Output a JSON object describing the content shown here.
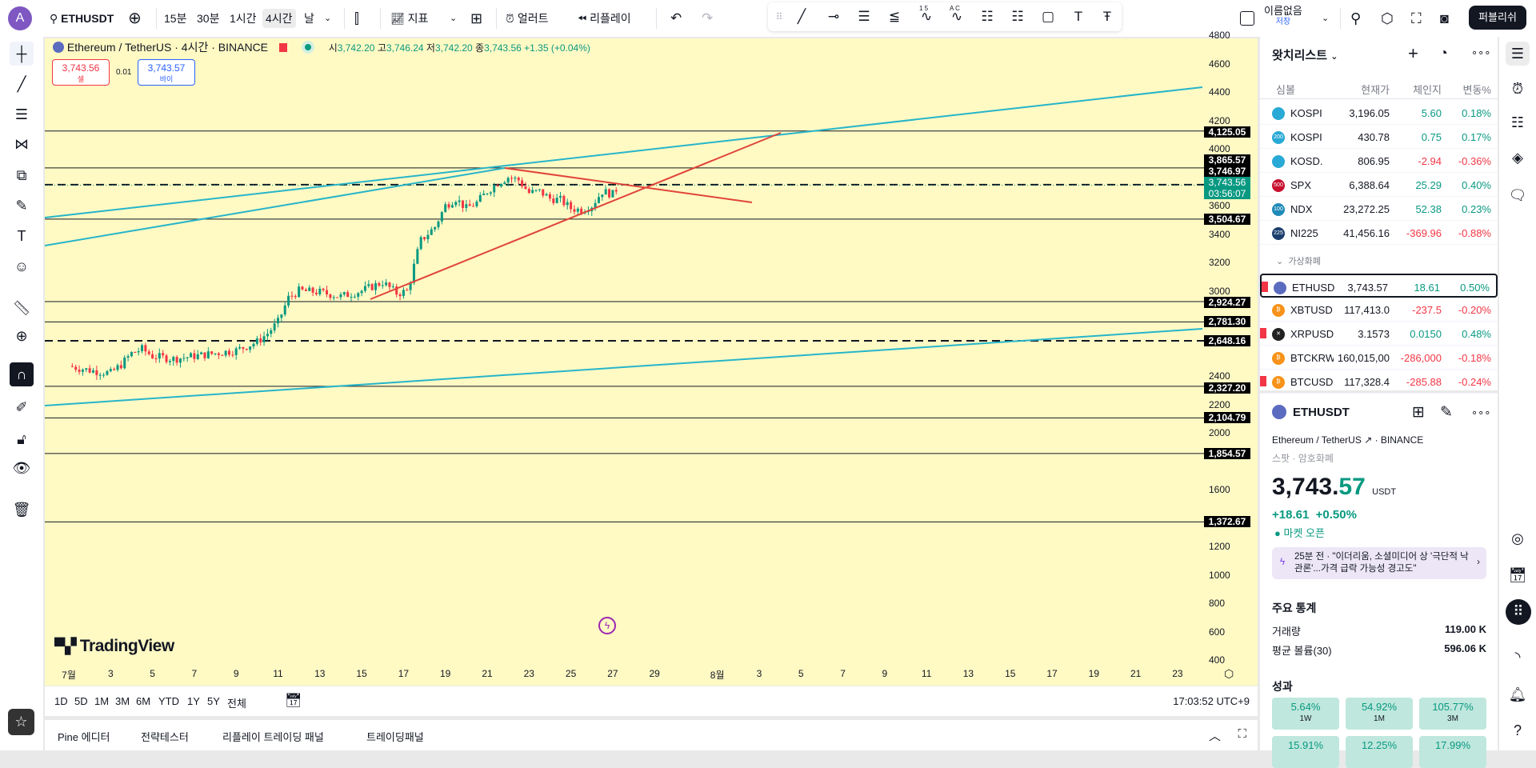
{
  "topbar": {
    "avatar": "A",
    "symbol": "ETHUSDT",
    "intervals": [
      "15분",
      "30분",
      "1시간",
      "4시간",
      "날"
    ],
    "selected_interval": "4시간",
    "indicators": "지표",
    "alert": "얼러트",
    "replay": "리플레이",
    "layout_name": "이름없음",
    "layout_sub": "저장",
    "publish": "퍼블리쉬",
    "drawing_tools": [
      "trendline-icon",
      "horizontal-ray-icon",
      "parallel-channel-icon",
      "fib-retracement-icon",
      "xabcd-pattern-icon",
      "abcd-pattern-icon",
      "long-position-icon",
      "short-position-icon",
      "rectangle-icon",
      "text-icon",
      "anchored-text-icon"
    ],
    "pattern_labels": [
      "1 5",
      "A C"
    ]
  },
  "legend": {
    "title": "Ethereum / TetherUS · 4시간 · BINANCE",
    "o_label": "시",
    "o": "3,742.20",
    "h_label": "고",
    "h": "3,746.24",
    "l_label": "저",
    "l": "3,742.20",
    "c_label": "종",
    "c": "3,743.56",
    "change": "+1.35 (+0.04%)",
    "sell_price": "3,743.56",
    "sell_label": "셀",
    "spread": "0.01",
    "buy_price": "3,743.57",
    "buy_label": "바이"
  },
  "logo": "TradingView",
  "chart_data": {
    "type": "candlestick",
    "ylim": [
      400,
      4800
    ],
    "y_ticks": [
      4800,
      4600,
      4400,
      4200,
      4000,
      3600,
      3400,
      3200,
      3000,
      2400,
      2200,
      2000,
      1600,
      1200,
      1000,
      800,
      600,
      400
    ],
    "x_ticks": [
      {
        "day": 1,
        "label": "7월"
      },
      {
        "day": 3,
        "label": "3"
      },
      {
        "day": 5,
        "label": "5"
      },
      {
        "day": 7,
        "label": "7"
      },
      {
        "day": 9,
        "label": "9"
      },
      {
        "day": 11,
        "label": "11"
      },
      {
        "day": 13,
        "label": "13"
      },
      {
        "day": 15,
        "label": "15"
      },
      {
        "day": 17,
        "label": "17"
      },
      {
        "day": 19,
        "label": "19"
      },
      {
        "day": 21,
        "label": "21"
      },
      {
        "day": 23,
        "label": "23"
      },
      {
        "day": 25,
        "label": "25"
      },
      {
        "day": 27,
        "label": "27"
      },
      {
        "day": 29,
        "label": "29"
      },
      {
        "day": 32,
        "label": "8월"
      },
      {
        "day": 34,
        "label": "3"
      },
      {
        "day": 36,
        "label": "5"
      },
      {
        "day": 38,
        "label": "7"
      },
      {
        "day": 40,
        "label": "9"
      },
      {
        "day": 42,
        "label": "11"
      },
      {
        "day": 44,
        "label": "13"
      },
      {
        "day": 46,
        "label": "15"
      },
      {
        "day": 48,
        "label": "17"
      },
      {
        "day": 50,
        "label": "19"
      },
      {
        "day": 52,
        "label": "21"
      },
      {
        "day": 54,
        "label": "23"
      }
    ],
    "price_path": [
      [
        0,
        2470
      ],
      [
        1,
        2440
      ],
      [
        2,
        2420
      ],
      [
        2.5,
        2480
      ],
      [
        3,
        2560
      ],
      [
        3.5,
        2590
      ],
      [
        4,
        2540
      ],
      [
        5,
        2520
      ],
      [
        6,
        2540
      ],
      [
        7,
        2560
      ],
      [
        8,
        2580
      ],
      [
        9,
        2640
      ],
      [
        9.5,
        2700
      ],
      [
        10,
        2780
      ],
      [
        10.5,
        2950
      ],
      [
        11,
        3000
      ],
      [
        12,
        2990
      ],
      [
        13,
        2960
      ],
      [
        14,
        3000
      ],
      [
        15,
        3060
      ],
      [
        15.7,
        2980
      ],
      [
        16.2,
        3000
      ],
      [
        16.8,
        3350
      ],
      [
        17.5,
        3450
      ],
      [
        18,
        3600
      ],
      [
        18.5,
        3650
      ],
      [
        19,
        3580
      ],
      [
        19.5,
        3620
      ],
      [
        20,
        3700
      ],
      [
        20.5,
        3760
      ],
      [
        21,
        3800
      ],
      [
        21.5,
        3780
      ],
      [
        22,
        3690
      ],
      [
        22.5,
        3700
      ],
      [
        23,
        3650
      ],
      [
        23.5,
        3640
      ],
      [
        24,
        3580
      ],
      [
        24.5,
        3570
      ],
      [
        25,
        3600
      ],
      [
        25.5,
        3700
      ],
      [
        26,
        3680
      ],
      [
        26.3,
        3743.56
      ]
    ],
    "horizontal_levels": [
      {
        "price": 4125.05,
        "label": "4,125.05",
        "style": "solid"
      },
      {
        "price": 3865.57,
        "label": "3,865.57",
        "style": "solid"
      },
      {
        "price": 3746.97,
        "label": "3,746.97",
        "style": "dashed"
      },
      {
        "price": 3504.67,
        "label": "3,504.67",
        "style": "solid"
      },
      {
        "price": 2924.27,
        "label": "2,924.27",
        "style": "solid"
      },
      {
        "price": 2781.3,
        "label": "2,781.30",
        "style": "solid"
      },
      {
        "price": 2648.16,
        "label": "2,648.16",
        "style": "dashed"
      },
      {
        "price": 2327.2,
        "label": "2,327.20",
        "style": "solid"
      },
      {
        "price": 2104.79,
        "label": "2,104.79",
        "style": "solid"
      },
      {
        "price": 1854.57,
        "label": "1,854.57",
        "style": "solid"
      },
      {
        "price": 1372.67,
        "label": "1,372.67",
        "style": "solid"
      }
    ],
    "last_price": {
      "price": 3743.56,
      "label": "3,743.56",
      "countdown": "03:56:07"
    },
    "colors": {
      "up": "#089981",
      "down": "#f23645",
      "trend_cyan": "#26b5c9",
      "trend_red": "#e0453a",
      "bg": "#fff9c4"
    }
  },
  "bottombar": {
    "ranges": [
      "1D",
      "5D",
      "1M",
      "3M",
      "6M",
      "YTD",
      "1Y",
      "5Y",
      "전체"
    ],
    "clock": "17:03:52 UTC+9"
  },
  "bottom_panel": {
    "tabs": [
      "Pine 에디터",
      "전략테스터",
      "리플레이 트레이딩 패널",
      "트레이딩패널"
    ]
  },
  "watchlist": {
    "title": "왓치리스트",
    "columns": [
      "심볼",
      "현재가",
      "체인지",
      "변동%"
    ],
    "rows": [
      {
        "badge": "",
        "color": "#29a9d6",
        "symbol": "KOSPI",
        "last": "3,196.05",
        "chg": "5.60",
        "pct": "0.18%",
        "dir": "pos"
      },
      {
        "badge": "200",
        "color": "#29a9d6",
        "symbol": "KOSPI",
        "last": "430.78",
        "chg": "0.75",
        "pct": "0.17%",
        "dir": "pos"
      },
      {
        "badge": "",
        "color": "#29a9d6",
        "symbol": "KOSD.",
        "last": "806.95",
        "chg": "-2.94",
        "pct": "-0.36%",
        "dir": "neg"
      },
      {
        "badge": "500",
        "color": "#c8102e",
        "symbol": "SPX",
        "last": "6,388.64",
        "chg": "25.29",
        "pct": "0.40%",
        "dir": "pos"
      },
      {
        "badge": "100",
        "color": "#1f8ab8",
        "symbol": "NDX",
        "last": "23,272.25",
        "chg": "52.38",
        "pct": "0.23%",
        "dir": "pos"
      },
      {
        "badge": "225",
        "color": "#1d3f6e",
        "symbol": "NI225",
        "last": "41,456.16",
        "chg": "-369.96",
        "pct": "-0.88%",
        "dir": "neg"
      }
    ],
    "section": "가상화폐",
    "crypto_rows": [
      {
        "badge": "",
        "color": "#5b6bc0",
        "symbol": "ETHUSD",
        "last": "3,743.57",
        "chg": "18.61",
        "pct": "0.50%",
        "dir": "pos",
        "flag": true,
        "selected": true
      },
      {
        "badge": "₿",
        "color": "#f7931a",
        "symbol": "XBTUSD",
        "last": "117,413.0",
        "chg": "-237.5",
        "pct": "-0.20%",
        "dir": "neg",
        "flag": false
      },
      {
        "badge": "✕",
        "color": "#222",
        "symbol": "XRPUSD",
        "last": "3.1573",
        "chg": "0.0150",
        "pct": "0.48%",
        "dir": "pos",
        "flag": true
      },
      {
        "badge": "₿",
        "color": "#f7931a",
        "symbol": "BTCKRW",
        "last": "160,015,00",
        "chg": "-286,000",
        "pct": "-0.18%",
        "dir": "neg",
        "flag": false
      },
      {
        "badge": "₿",
        "color": "#f7931a",
        "symbol": "BTCUSD",
        "last": "117,328.4",
        "chg": "-285.88",
        "pct": "-0.24%",
        "dir": "neg",
        "flag": true
      }
    ]
  },
  "detail": {
    "symbol": "ETHUSDT",
    "name": "Ethereum / TetherUS",
    "exchange": "BINANCE",
    "type": "스팟 · 암호화폐",
    "price_main": "3,743.",
    "price_tail": "57",
    "currency": "USDT",
    "change": "+18.61",
    "change_pct": "+0.50%",
    "market_status": "마켓 오픈",
    "news": "25분 전 · \"이더리움, 소셜미디어 상 '극단적 낙관론'...가격 급락 가능성 경고도\"",
    "stats_title": "주요 통계",
    "stats": [
      {
        "label": "거래량",
        "value": "119.00 K"
      },
      {
        "label": "평균 볼륨(30)",
        "value": "596.06 K"
      }
    ],
    "perf_title": "성과",
    "perf": [
      {
        "value": "5.64%",
        "period": "1W"
      },
      {
        "value": "54.92%",
        "period": "1M"
      },
      {
        "value": "105.77%",
        "period": "3M"
      },
      {
        "value": "15.91%",
        "period": ""
      },
      {
        "value": "12.25%",
        "period": ""
      },
      {
        "value": "17.99%",
        "period": ""
      }
    ]
  }
}
